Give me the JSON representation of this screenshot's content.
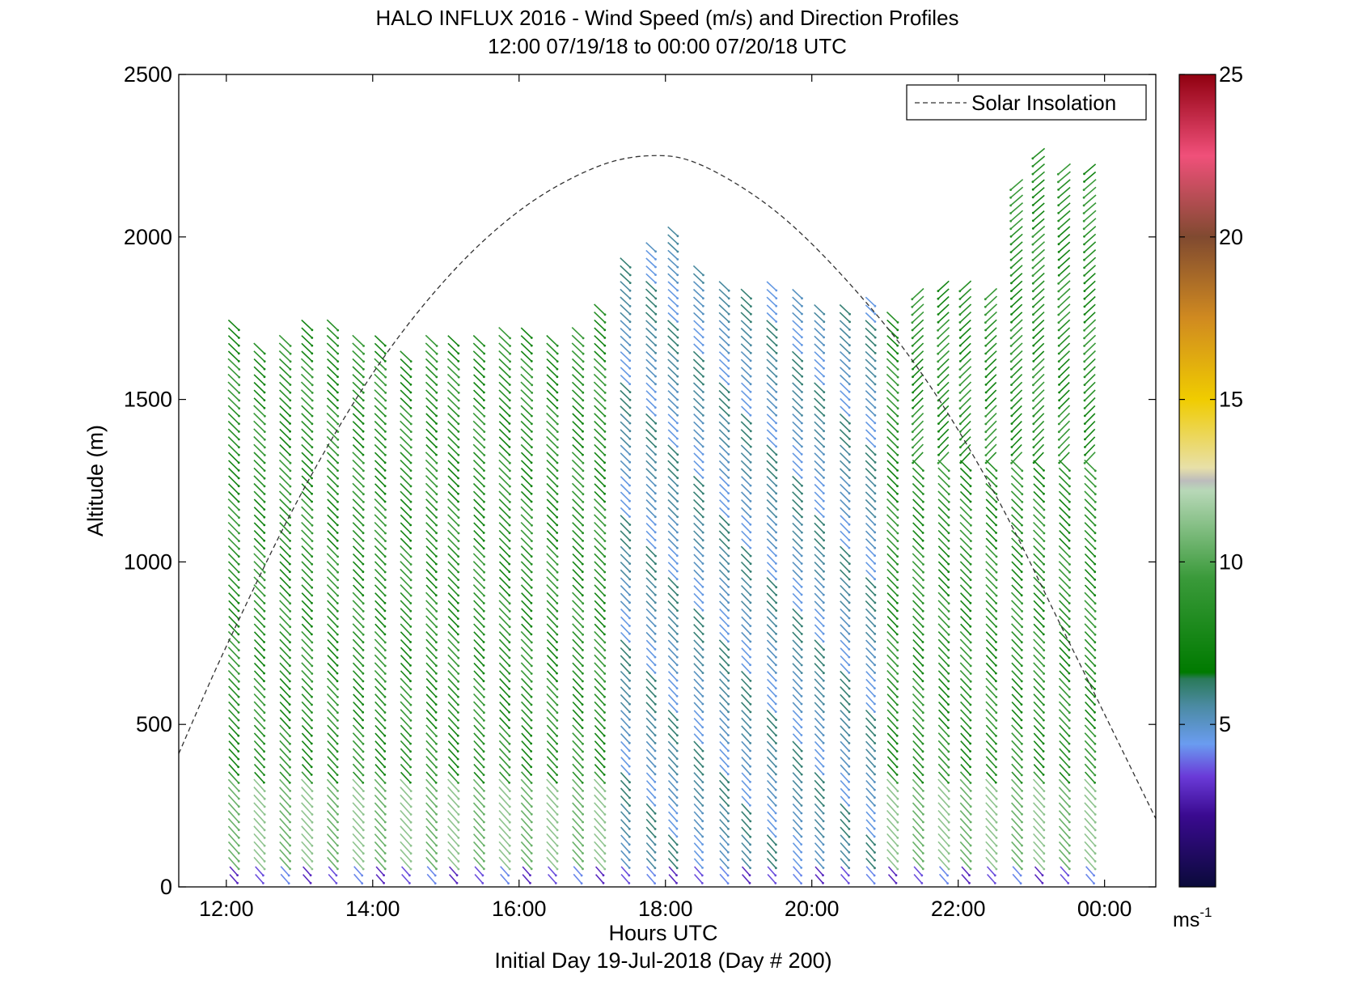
{
  "chart_data": {
    "type": "wind-barb-profile",
    "title": "HALO INFLUX 2016 - Wind Speed (m/s) and Direction Profiles",
    "subtitle": "12:00 07/19/18 to 00:00 07/20/18  UTC",
    "xlabel": "Hours UTC",
    "xlabel2": "Initial Day 19-Jul-2018 (Day # 200)",
    "ylabel": "Altitude (m)",
    "x_range_hours": [
      11.35,
      24.7
    ],
    "ylim": [
      0,
      2500
    ],
    "x_ticks": [
      {
        "hour": 12,
        "label": "12:00"
      },
      {
        "hour": 14,
        "label": "14:00"
      },
      {
        "hour": 16,
        "label": "16:00"
      },
      {
        "hour": 18,
        "label": "18:00"
      },
      {
        "hour": 20,
        "label": "20:00"
      },
      {
        "hour": 22,
        "label": "22:00"
      },
      {
        "hour": 24,
        "label": "00:00"
      }
    ],
    "y_ticks": [
      {
        "value": 0,
        "label": "0"
      },
      {
        "value": 500,
        "label": "500"
      },
      {
        "value": 1000,
        "label": "1000"
      },
      {
        "value": 1500,
        "label": "1500"
      },
      {
        "value": 2000,
        "label": "2000"
      },
      {
        "value": 2500,
        "label": "2500"
      }
    ],
    "legend": {
      "label": "Solar Insolation",
      "placement": "top-right",
      "style": "dashed"
    },
    "solar_insolation_curve": [
      {
        "hour": 11.35,
        "altitude": 410
      },
      {
        "hour": 12.0,
        "altitude": 740
      },
      {
        "hour": 13.0,
        "altitude": 1200
      },
      {
        "hour": 14.0,
        "altitude": 1580
      },
      {
        "hour": 15.0,
        "altitude": 1870
      },
      {
        "hour": 16.0,
        "altitude": 2080
      },
      {
        "hour": 17.0,
        "altitude": 2210
      },
      {
        "hour": 17.8,
        "altitude": 2250
      },
      {
        "hour": 18.5,
        "altitude": 2220
      },
      {
        "hour": 19.5,
        "altitude": 2080
      },
      {
        "hour": 20.5,
        "altitude": 1860
      },
      {
        "hour": 21.5,
        "altitude": 1580
      },
      {
        "hour": 22.5,
        "altitude": 1210
      },
      {
        "hour": 23.5,
        "altitude": 760
      },
      {
        "hour": 24.7,
        "altitude": 210
      }
    ],
    "profiles": [
      {
        "hour": 12.1,
        "top": 1740
      },
      {
        "hour": 12.45,
        "top": 1660
      },
      {
        "hour": 12.8,
        "top": 1700
      },
      {
        "hour": 13.1,
        "top": 1740
      },
      {
        "hour": 13.45,
        "top": 1740
      },
      {
        "hour": 13.8,
        "top": 1700
      },
      {
        "hour": 14.1,
        "top": 1700
      },
      {
        "hour": 14.45,
        "top": 1640
      },
      {
        "hour": 14.8,
        "top": 1700
      },
      {
        "hour": 15.1,
        "top": 1690
      },
      {
        "hour": 15.45,
        "top": 1700
      },
      {
        "hour": 15.8,
        "top": 1720
      },
      {
        "hour": 16.1,
        "top": 1720
      },
      {
        "hour": 16.45,
        "top": 1700
      },
      {
        "hour": 16.8,
        "top": 1720
      },
      {
        "hour": 17.1,
        "top": 1780
      },
      {
        "hour": 17.45,
        "top": 1940
      },
      {
        "hour": 17.8,
        "top": 1980
      },
      {
        "hour": 18.1,
        "top": 2020
      },
      {
        "hour": 18.45,
        "top": 1900
      },
      {
        "hour": 18.8,
        "top": 1860
      },
      {
        "hour": 19.1,
        "top": 1840
      },
      {
        "hour": 19.45,
        "top": 1860
      },
      {
        "hour": 19.8,
        "top": 1840
      },
      {
        "hour": 20.1,
        "top": 1780
      },
      {
        "hour": 20.45,
        "top": 1780
      },
      {
        "hour": 20.8,
        "top": 1820
      },
      {
        "hour": 21.1,
        "top": 1760
      },
      {
        "hour": 21.45,
        "top": 1840
      },
      {
        "hour": 21.8,
        "top": 1860
      },
      {
        "hour": 22.1,
        "top": 1850
      },
      {
        "hour": 22.45,
        "top": 1840
      },
      {
        "hour": 22.8,
        "top": 2180
      },
      {
        "hour": 23.1,
        "top": 2260
      },
      {
        "hour": 23.45,
        "top": 2220
      },
      {
        "hour": 23.8,
        "top": 2230
      }
    ],
    "colorbar": {
      "label": "ms",
      "label_exponent": "-1",
      "range": [
        0,
        25
      ],
      "ticks": [
        {
          "value": 5,
          "label": "5"
        },
        {
          "value": 10,
          "label": "10"
        },
        {
          "value": 15,
          "label": "15"
        },
        {
          "value": 20,
          "label": "20"
        },
        {
          "value": 25,
          "label": "25"
        }
      ],
      "stops": [
        {
          "value": 0,
          "color": "#0a0a3a"
        },
        {
          "value": 2.2,
          "color": "#3a0a90"
        },
        {
          "value": 3.4,
          "color": "#6a3ad8"
        },
        {
          "value": 4.4,
          "color": "#6a9cf0"
        },
        {
          "value": 5.6,
          "color": "#4a8aa0"
        },
        {
          "value": 6.4,
          "color": "#2a7a5a"
        },
        {
          "value": 6.6,
          "color": "#007a00"
        },
        {
          "value": 9.5,
          "color": "#3a9a3a"
        },
        {
          "value": 12.2,
          "color": "#b8d8b8"
        },
        {
          "value": 12.5,
          "color": "#bcbcbc"
        },
        {
          "value": 12.9,
          "color": "#e8e0a8"
        },
        {
          "value": 15,
          "color": "#f0cc00"
        },
        {
          "value": 17.5,
          "color": "#d08a20"
        },
        {
          "value": 20,
          "color": "#804a30"
        },
        {
          "value": 22.5,
          "color": "#f0507a"
        },
        {
          "value": 25,
          "color": "#900010"
        }
      ]
    }
  }
}
